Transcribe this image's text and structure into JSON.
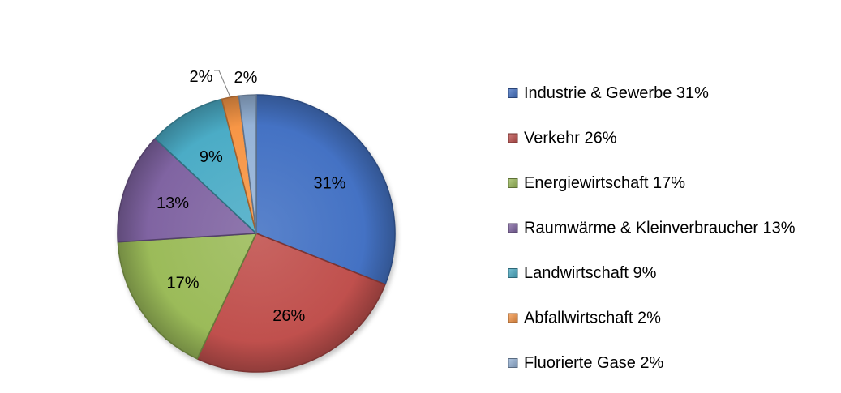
{
  "chart_data": {
    "type": "pie",
    "legend_position": "right",
    "start_angle_deg": 0,
    "direction": "clockwise",
    "slices": [
      {
        "label": "Industrie & Gewerbe",
        "value": 31,
        "data_label": "31%",
        "legend": "Industrie & Gewerbe 31%",
        "color": "#4472C4"
      },
      {
        "label": "Verkehr",
        "value": 26,
        "data_label": "26%",
        "legend": "Verkehr 26%",
        "color": "#C0504D"
      },
      {
        "label": "Energiewirtschaft",
        "value": 17,
        "data_label": "17%",
        "legend": "Energiewirtschaft 17%",
        "color": "#9BBB59"
      },
      {
        "label": "Raumwärme & Kleinverbraucher",
        "value": 13,
        "data_label": "13%",
        "legend": "Raumwärme & Kleinverbraucher 13%",
        "color": "#8064A2"
      },
      {
        "label": "Landwirtschaft",
        "value": 9,
        "data_label": "9%",
        "legend": "Landwirtschaft 9%",
        "color": "#4BACC6"
      },
      {
        "label": "Abfallwirtschaft",
        "value": 2,
        "data_label": "2%",
        "legend": "Abfallwirtschaft 2%",
        "color": "#F79646"
      },
      {
        "label": "Fluorierte Gase",
        "value": 2,
        "data_label": "2%",
        "legend": "Fluorierte Gase 2%",
        "color": "#95B3D7"
      }
    ]
  }
}
